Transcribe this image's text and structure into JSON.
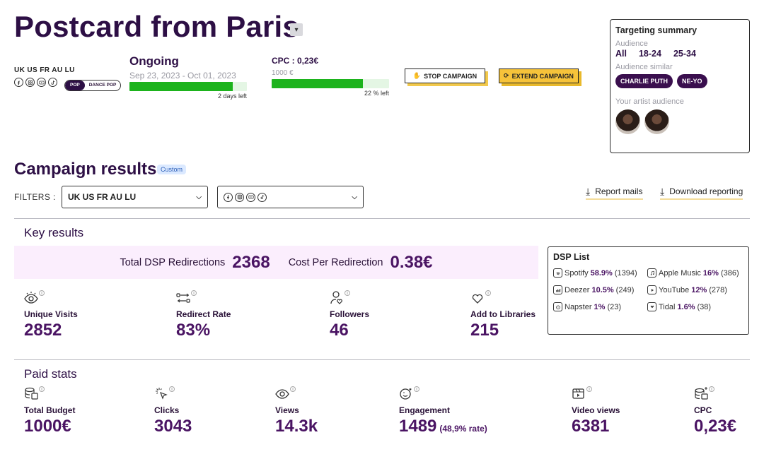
{
  "header": {
    "title": "Postcard from Paris",
    "countries": "UK US FR AU LU",
    "genres": [
      "POP",
      "DANCE POP"
    ],
    "status": "Ongoing",
    "dates": "Sep 23, 2023 - Oct 01, 2023",
    "time_progress": 0.88,
    "days_left": "2 days left",
    "cpc": "CPC : 0,23€",
    "budget": "1000 €",
    "budget_progress": 0.78,
    "budget_left": "22 % left",
    "stop_label": "STOP CAMPAIGN",
    "extend_label": "EXTEND CAMPAIGN"
  },
  "targeting": {
    "title": "Targeting summary",
    "audience_label": "Audience",
    "audience": [
      "All",
      "18-24",
      "25-34"
    ],
    "similar_label": "Audience similar",
    "similar": [
      "CHARLIE PUTH",
      "NE-YO"
    ],
    "artist_label": "Your artist audience"
  },
  "results": {
    "title": "Campaign results",
    "badge": "Custom",
    "filters_label": "FILTERS :",
    "country_filter": "UK US FR AU LU",
    "report_mails": "Report mails",
    "download": "Download reporting"
  },
  "key": {
    "title": "Key results",
    "total_dsp_label": "Total DSP Redirections",
    "total_dsp_value": "2368",
    "cost_label": "Cost Per Redirection",
    "cost_value": "0.38€",
    "metrics": [
      {
        "label": "Unique Visits",
        "value": "2852"
      },
      {
        "label": "Redirect Rate",
        "value": "83%"
      },
      {
        "label": "Followers",
        "value": "46"
      },
      {
        "label": "Add to Libraries",
        "value": "215"
      }
    ]
  },
  "dsp": {
    "title": "DSP List",
    "items": [
      {
        "name": "Spotify",
        "pct": "58.9%",
        "count": "(1394)"
      },
      {
        "name": "Apple Music",
        "pct": "16%",
        "count": "(386)"
      },
      {
        "name": "Deezer",
        "pct": "10.5%",
        "count": "(249)"
      },
      {
        "name": "YouTube",
        "pct": "12%",
        "count": "(278)"
      },
      {
        "name": "Napster",
        "pct": "1%",
        "count": "(23)"
      },
      {
        "name": "Tidal",
        "pct": "1.6%",
        "count": "(38)"
      }
    ]
  },
  "paid": {
    "title": "Paid stats",
    "metrics": [
      {
        "label": "Total Budget",
        "value": "1000€"
      },
      {
        "label": "Clicks",
        "value": "3043"
      },
      {
        "label": "Views",
        "value": "14.3k"
      },
      {
        "label": "Engagement",
        "value": "1489",
        "sub": "(48,9% rate)"
      },
      {
        "label": "Video views",
        "value": "6381"
      },
      {
        "label": "CPC",
        "value": "0,23€"
      }
    ]
  }
}
